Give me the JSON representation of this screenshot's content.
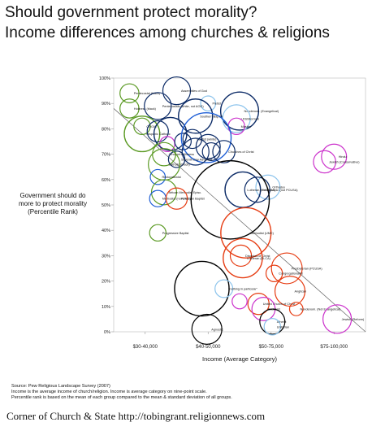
{
  "header": {
    "title_line1": "Should government protect morality?",
    "title_line2": "Income differences among churches & religions"
  },
  "source": {
    "line1": "Source: Pew Religious Landscape Survey (2007)",
    "line2": "Income is the average income of church/religion. Income is average category on nine-point scale.",
    "line3": "Percentile rank is based on the mean of each group compared to the mean & standard deviation of all groups."
  },
  "footer": "Corner of Church & State http://tobingrant.religionnews.com",
  "chart_data": {
    "type": "scatter",
    "xlabel": "Income (Average Category)",
    "ylabel_lines": [
      "Government should do",
      "more to protect morality",
      "(Percentile Rank)"
    ],
    "x_tick_labels": [
      "$30-40,000",
      "$40-50,000",
      "$50-75,000",
      "$75-100,000"
    ],
    "x_tick_positions": [
      3,
      4,
      5,
      6
    ],
    "xlim": [
      2.5,
      6.5
    ],
    "ylim": [
      0,
      100
    ],
    "y_ticks": [
      0,
      10,
      20,
      30,
      40,
      50,
      60,
      70,
      80,
      90,
      100
    ],
    "y_tick_suffix": "%",
    "grid": false,
    "trendline": {
      "from": [
        2.5,
        88
      ],
      "to": [
        6.5,
        0
      ]
    },
    "colors": {
      "dark_blue": "#0b2a66",
      "blue": "#1f5fd6",
      "light_blue": "#8bc3ec",
      "green": "#5b9a24",
      "red": "#e63c12",
      "magenta": "#cc33cc",
      "black": "#000000"
    },
    "points": [
      {
        "label": "Pentecostal (black)",
        "x": 2.75,
        "y": 94,
        "size": 0.08,
        "color": "green"
      },
      {
        "label": "Assemblies of God",
        "x": 3.5,
        "y": 95,
        "size": 0.17,
        "color": "dark_blue"
      },
      {
        "label": "Pietist",
        "x": 4.0,
        "y": 90,
        "size": 0.05,
        "color": "light_blue"
      },
      {
        "label": "Holiness (black)",
        "x": 2.75,
        "y": 88,
        "size": 0.08,
        "color": "green"
      },
      {
        "label": "Pentecostals (white, not AOG)",
        "x": 3.2,
        "y": 89,
        "size": 0.16,
        "color": "dark_blue"
      },
      {
        "label": "Nondenom. (Evangelical)",
        "x": 4.5,
        "y": 87,
        "size": 0.32,
        "color": "dark_blue"
      },
      {
        "label": "Southern Baptist",
        "x": 3.8,
        "y": 85,
        "size": 0.26,
        "color": "dark_blue"
      },
      {
        "label": "LDS/Mormon",
        "x": 4.45,
        "y": 84,
        "size": 0.17,
        "color": "light_blue"
      },
      {
        "label": "COGIC",
        "x": 2.95,
        "y": 81,
        "size": 0.06,
        "color": "green"
      },
      {
        "label": "Muslim",
        "x": 4.45,
        "y": 81,
        "size": 0.06,
        "color": "magenta"
      },
      {
        "label": "Hispanic Catholic",
        "x": 2.95,
        "y": 78,
        "size": 0.28,
        "color": "green"
      },
      {
        "label": "",
        "x": 3.2,
        "y": 79,
        "size": 0.1,
        "color": "dark_blue"
      },
      {
        "label": "",
        "x": 3.35,
        "y": 74,
        "size": 0.05,
        "color": "magenta"
      },
      {
        "label": "",
        "x": 3.4,
        "y": 78,
        "size": 0.24,
        "color": "dark_blue"
      },
      {
        "label": "Baptist (white)",
        "x": 3.75,
        "y": 76,
        "size": 0.08,
        "color": "dark_blue"
      },
      {
        "label": "",
        "x": 3.6,
        "y": 75,
        "size": 0.06,
        "color": "dark_blue"
      },
      {
        "label": "",
        "x": 3.97,
        "y": 76.5,
        "size": 0.55,
        "color": "blue"
      },
      {
        "label": "Churches of Christ",
        "x": 4.25,
        "y": 71,
        "size": 0.11,
        "color": "dark_blue"
      },
      {
        "label": "",
        "x": 3.8,
        "y": 71,
        "size": 0.16,
        "color": "dark_blue"
      },
      {
        "label": "",
        "x": 4.0,
        "y": 73,
        "size": 0.13,
        "color": "dark_blue"
      },
      {
        "label": "",
        "x": 4.05,
        "y": 71,
        "size": 0.07,
        "color": "dark_blue"
      },
      {
        "label": "Jehovah's Witness",
        "x": 3.3,
        "y": 70,
        "size": 0.12,
        "color": "green"
      },
      {
        "label": "Seventh Day Adventist",
        "x": 3.5,
        "y": 68,
        "size": 0.06,
        "color": "dark_blue"
      },
      {
        "label": "Catholic (black)",
        "x": 3.3,
        "y": 66,
        "size": 0.22,
        "color": "green"
      },
      {
        "label": "Hindu",
        "x": 6.0,
        "y": 69,
        "size": 0.14,
        "color": "magenta"
      },
      {
        "label": "Jewish (Conservative)",
        "x": 5.85,
        "y": 67,
        "size": 0.11,
        "color": "magenta"
      },
      {
        "label": "Restorationist",
        "x": 3.2,
        "y": 61,
        "size": 0.05,
        "color": "blue"
      },
      {
        "label": "Orthodox",
        "x": 4.95,
        "y": 57,
        "size": 0.13,
        "color": "light_blue"
      },
      {
        "label": "Lutheran (not ELCA)",
        "x": 4.55,
        "y": 56,
        "size": 0.28,
        "color": "dark_blue"
      },
      {
        "label": "Presbyterian (not PCUSA)",
        "x": 4.78,
        "y": 56,
        "size": 0.14,
        "color": "dark_blue"
      },
      {
        "label": "African Methodist Episc.",
        "x": 3.3,
        "y": 55,
        "size": 0.14,
        "color": "green"
      },
      {
        "label": "Methodist (not UMC)",
        "x": 3.2,
        "y": 52.5,
        "size": 0.06,
        "color": "blue"
      },
      {
        "label": "American Baptist",
        "x": 3.5,
        "y": 52.5,
        "size": 0.1,
        "color": "red"
      },
      {
        "label": "",
        "x": 4.35,
        "y": 52,
        "size": 1.36,
        "color": "black"
      },
      {
        "label": "Progressive Baptist",
        "x": 3.2,
        "y": 39,
        "size": 0.06,
        "color": "green"
      },
      {
        "label": "Methodist (UMC)",
        "x": 4.6,
        "y": 39,
        "size": 0.56,
        "color": "red"
      },
      {
        "label": "Disciples of Christ",
        "x": 4.52,
        "y": 30,
        "size": 0.1,
        "color": "red"
      },
      {
        "label": "Lutheran (ELCA)",
        "x": 4.55,
        "y": 29,
        "size": 0.34,
        "color": "red"
      },
      {
        "label": "Presbyterian (PCUSA)",
        "x": 5.25,
        "y": 25,
        "size": 0.21,
        "color": "red"
      },
      {
        "label": "Congregationalist",
        "x": 5.05,
        "y": 23,
        "size": 0.06,
        "color": "red"
      },
      {
        "label": "",
        "x": 3.9,
        "y": 17,
        "size": 0.66,
        "color": "black"
      },
      {
        "label": "\"nothing in particular\"",
        "x": 4.25,
        "y": 17,
        "size": 0.07,
        "color": "light_blue"
      },
      {
        "label": "Anglican",
        "x": 5.3,
        "y": 16,
        "size": 0.2,
        "color": "red"
      },
      {
        "label": "United Church of Christ",
        "x": 4.8,
        "y": 11,
        "size": 0.1,
        "color": "red"
      },
      {
        "label": "Buddhist",
        "x": 4.88,
        "y": 9,
        "size": 0.12,
        "color": "magenta"
      },
      {
        "label": "",
        "x": 4.5,
        "y": 12,
        "size": 0.05,
        "color": "magenta"
      },
      {
        "label": "Nondenom. (Not Evangelical)",
        "x": 5.4,
        "y": 9,
        "size": 0.04,
        "color": "red"
      },
      {
        "label": "Jewish (Reform)",
        "x": 6.05,
        "y": 5,
        "size": 0.18,
        "color": "magenta"
      },
      {
        "label": "Atheist",
        "x": 5.02,
        "y": 4,
        "size": 0.14,
        "color": "black"
      },
      {
        "label": "Unitarian",
        "x": 5.02,
        "y": 2,
        "size": 0.06,
        "color": "light_blue"
      },
      {
        "label": "Agnostic",
        "x": 3.98,
        "y": 1,
        "size": 0.2,
        "color": "black"
      }
    ]
  }
}
